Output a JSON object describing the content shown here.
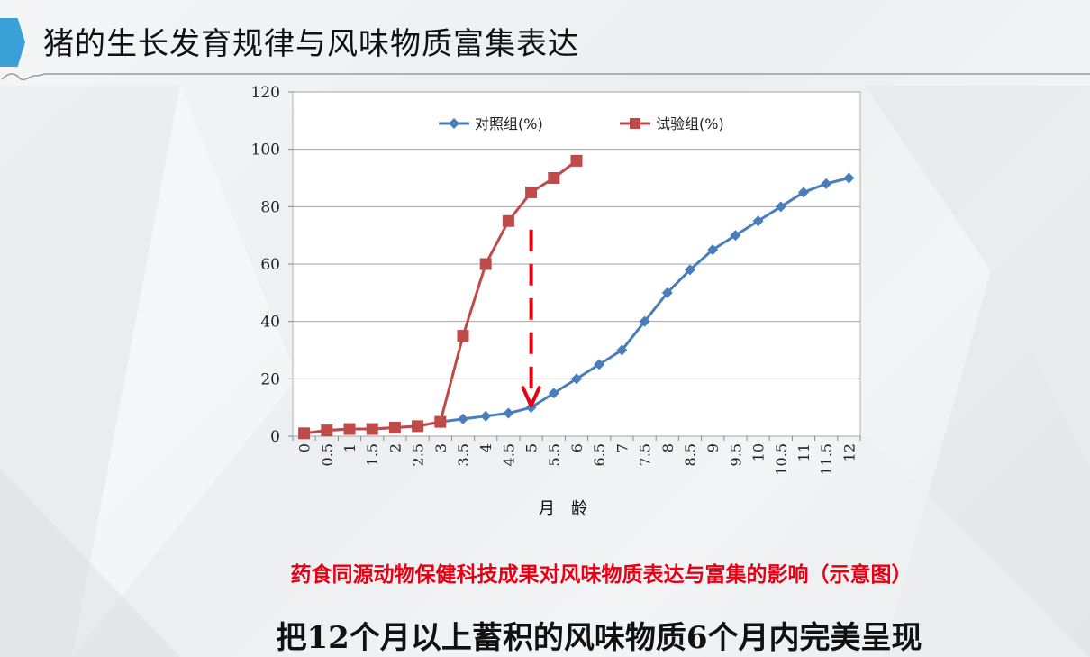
{
  "slide": {
    "title": "猪的生长发育规律与风味物质富集表达",
    "caption_red": "药食同源动物保健科技成果对风味物质表达与富集的影响（示意图）",
    "caption_main": "把12个月以上蓄积的风味物质6个月内完美呈现",
    "accent_color": "#3aa1d8",
    "caption_red_color": "#e60012"
  },
  "chart_data": {
    "type": "line",
    "title": "",
    "xlabel": "月　龄",
    "ylabel": "",
    "ylim": [
      0,
      120
    ],
    "yticks": [
      0,
      20,
      40,
      60,
      80,
      100,
      120
    ],
    "categories": [
      "0",
      "0.5",
      "1",
      "1.5",
      "2",
      "2.5",
      "3",
      "3.5",
      "4",
      "4.5",
      "5",
      "5.5",
      "6",
      "6.5",
      "7",
      "7.5",
      "8",
      "8.5",
      "9",
      "9.5",
      "10",
      "10.5",
      "11",
      "11.5",
      "12"
    ],
    "grid": true,
    "legend_position": "top",
    "series": [
      {
        "name": "对照组(%)",
        "color": "#4a7ebb",
        "marker": "diamond",
        "values": [
          1,
          2,
          2.5,
          2.5,
          3,
          3.5,
          5,
          6,
          7,
          8,
          10,
          15,
          20,
          25,
          30,
          40,
          50,
          58,
          65,
          70,
          75,
          80,
          85,
          88,
          90
        ]
      },
      {
        "name": "试验组(%)",
        "color": "#be4b48",
        "marker": "square",
        "values": [
          1,
          2,
          2.5,
          2.5,
          3,
          3.5,
          5,
          35,
          60,
          75,
          85,
          90,
          96,
          null,
          null,
          null,
          null,
          null,
          null,
          null,
          null,
          null,
          null,
          null,
          null
        ]
      }
    ],
    "annotation": {
      "type": "dashed-arrow",
      "color": "#e60012",
      "x": "5",
      "y_start": 72,
      "y_end": 10
    }
  }
}
